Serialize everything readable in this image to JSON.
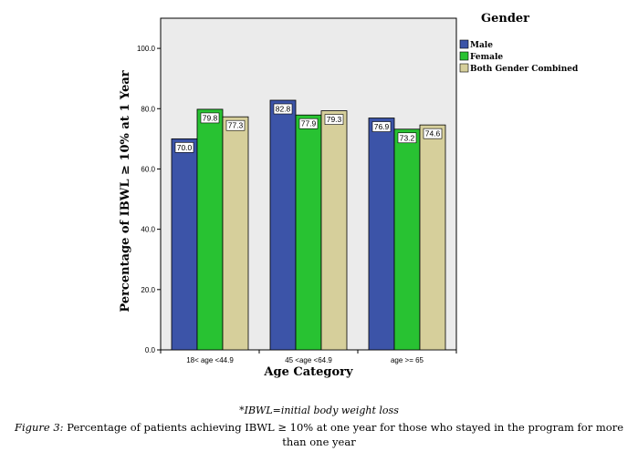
{
  "chart_data": {
    "type": "bar",
    "xlabel": "Age Category",
    "ylabel": "Percentage of IBWL ≥ 10% at 1 Year",
    "categories": [
      "18< age <44.9",
      "45 <age <64.9",
      "age >= 65"
    ],
    "series": [
      {
        "name": "Male",
        "values": [
          70.0,
          82.8,
          76.9
        ],
        "labels": [
          "70.0",
          "82.8",
          "76.9"
        ],
        "color": "#3c54a8"
      },
      {
        "name": "Female",
        "values": [
          79.8,
          77.9,
          73.2
        ],
        "labels": [
          "79.8",
          "77.9",
          "73.2"
        ],
        "color": "#28c232"
      },
      {
        "name": "Both Gender Combined",
        "values": [
          77.3,
          79.3,
          74.6
        ],
        "labels": [
          "77.3",
          "79.3",
          "74.6"
        ],
        "color": "#d6cf9b"
      }
    ],
    "ylim": [
      0,
      110
    ],
    "yticks": [
      "0.0",
      "20.0",
      "40.0",
      "60.0",
      "80.0",
      "100.0"
    ],
    "legend_title": "Gender",
    "legend_position": "top-right",
    "grid": false,
    "plot_background": "#ebebeb"
  },
  "footnote": "*IBWL=initial body weight loss",
  "caption": {
    "figure_label": "Figure 3:",
    "text": "Percentage of patients achieving IBWL ≥ 10% at one year for those who stayed in the program for more than one year"
  }
}
